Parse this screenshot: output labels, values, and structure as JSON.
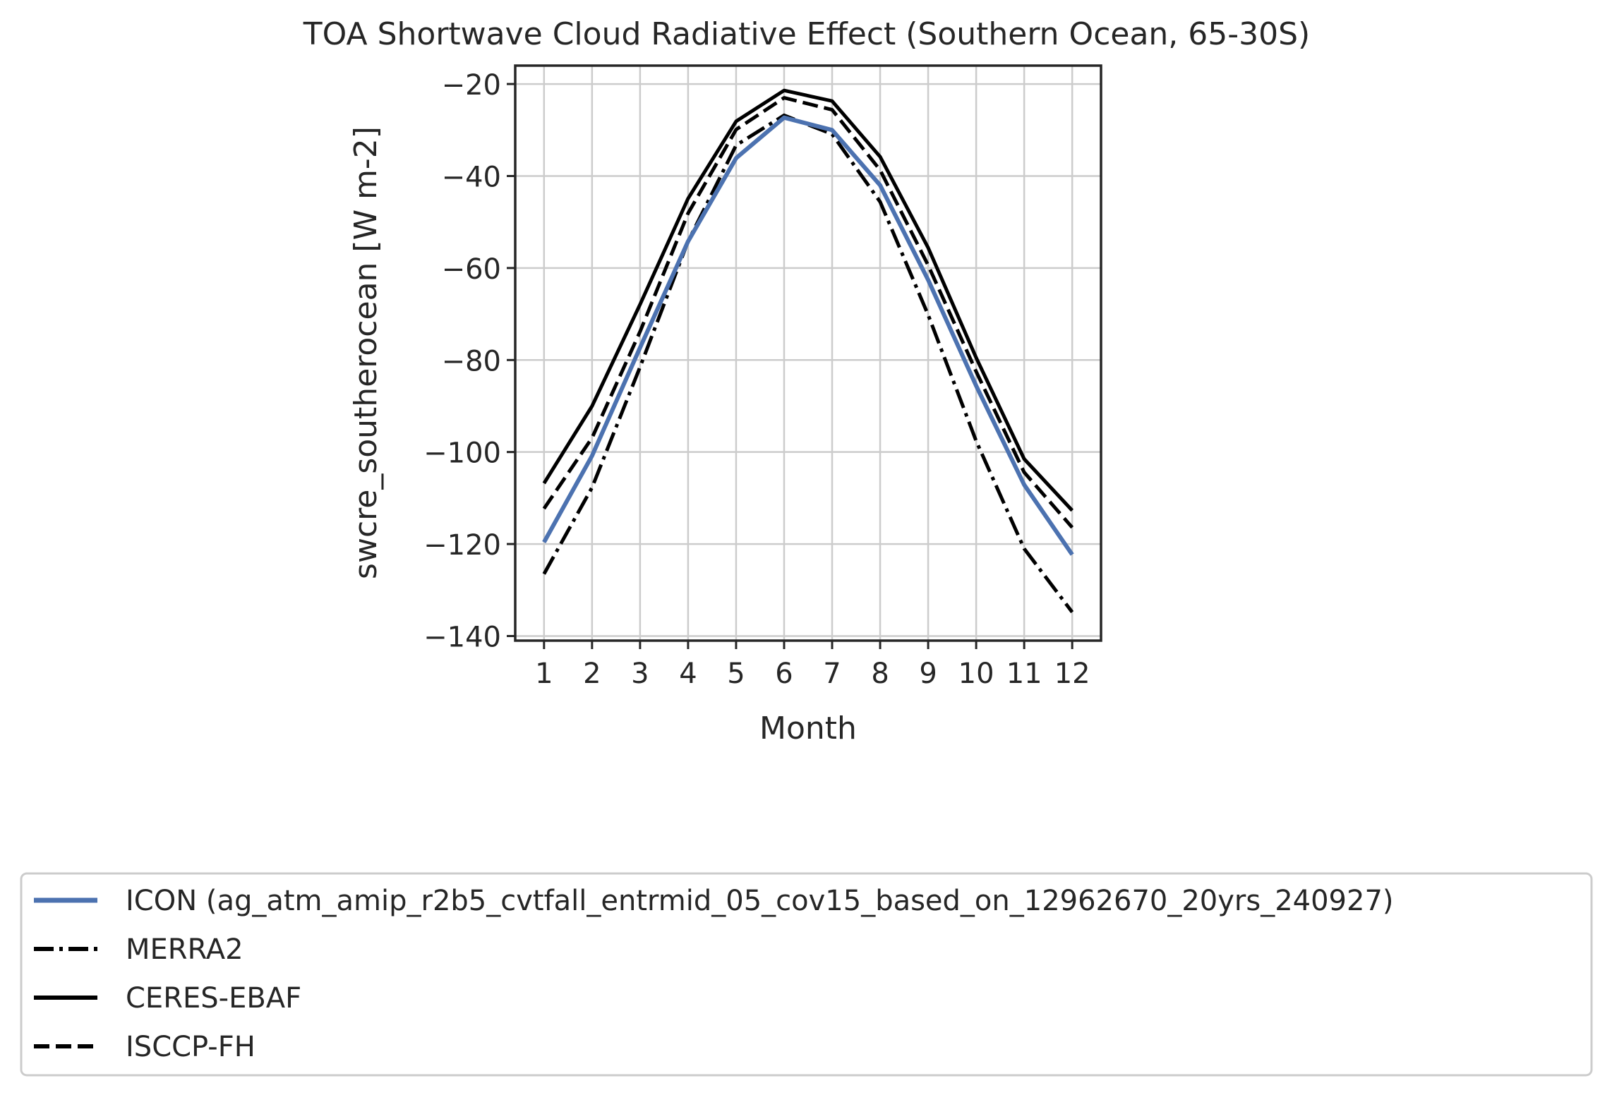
{
  "chart_data": {
    "type": "line",
    "title": "TOA Shortwave Cloud Radiative Effect (Southern Ocean, 65-30S)",
    "xlabel": "Month",
    "ylabel": "swcre_southerocean [W m-2]",
    "xlim": [
      0.4,
      12.6
    ],
    "ylim": [
      -141,
      -16
    ],
    "x": [
      1,
      2,
      3,
      4,
      5,
      6,
      7,
      8,
      9,
      10,
      11,
      12
    ],
    "x_ticks": [
      "1",
      "2",
      "3",
      "4",
      "5",
      "6",
      "7",
      "8",
      "9",
      "10",
      "11",
      "12"
    ],
    "y_ticks": [
      -20,
      -40,
      -60,
      -80,
      -100,
      -120,
      -140
    ],
    "y_tick_labels": [
      "−20",
      "−40",
      "−60",
      "−80",
      "−100",
      "−120",
      "−140"
    ],
    "grid": true,
    "legend_placement": "bottom, below the plot",
    "series": [
      {
        "name": "ICON (ag_atm_amip_r2b5_cvtfall_entrmid_05_cov15_based_on_12962670_20yrs_240927)",
        "style": "solid",
        "color": "#4c72b0",
        "width": 6,
        "values": [
          -119.6,
          -100.8,
          -77.3,
          -54.2,
          -36.1,
          -27.3,
          -30.0,
          -42.0,
          -62.6,
          -85.6,
          -107.1,
          -122.3
        ]
      },
      {
        "name": "MERRA2",
        "style": "dashdot",
        "color": "#000000",
        "width": 5,
        "values": [
          -126.5,
          -107.7,
          -81.5,
          -54.2,
          -33.3,
          -26.8,
          -30.9,
          -45.6,
          -70.2,
          -97.6,
          -121.0,
          -134.8
        ]
      },
      {
        "name": "CERES-EBAF",
        "style": "solid",
        "color": "#000000",
        "width": 5,
        "values": [
          -106.8,
          -90.0,
          -67.9,
          -44.9,
          -28.1,
          -21.4,
          -23.7,
          -35.8,
          -55.6,
          -79.5,
          -101.5,
          -112.7
        ]
      },
      {
        "name": "ISCCP-FH",
        "style": "dashed",
        "color": "#000000",
        "width": 5,
        "values": [
          -112.3,
          -96.9,
          -73.8,
          -48.1,
          -29.9,
          -23.0,
          -25.6,
          -38.7,
          -59.4,
          -82.5,
          -104.4,
          -116.4
        ]
      }
    ]
  }
}
